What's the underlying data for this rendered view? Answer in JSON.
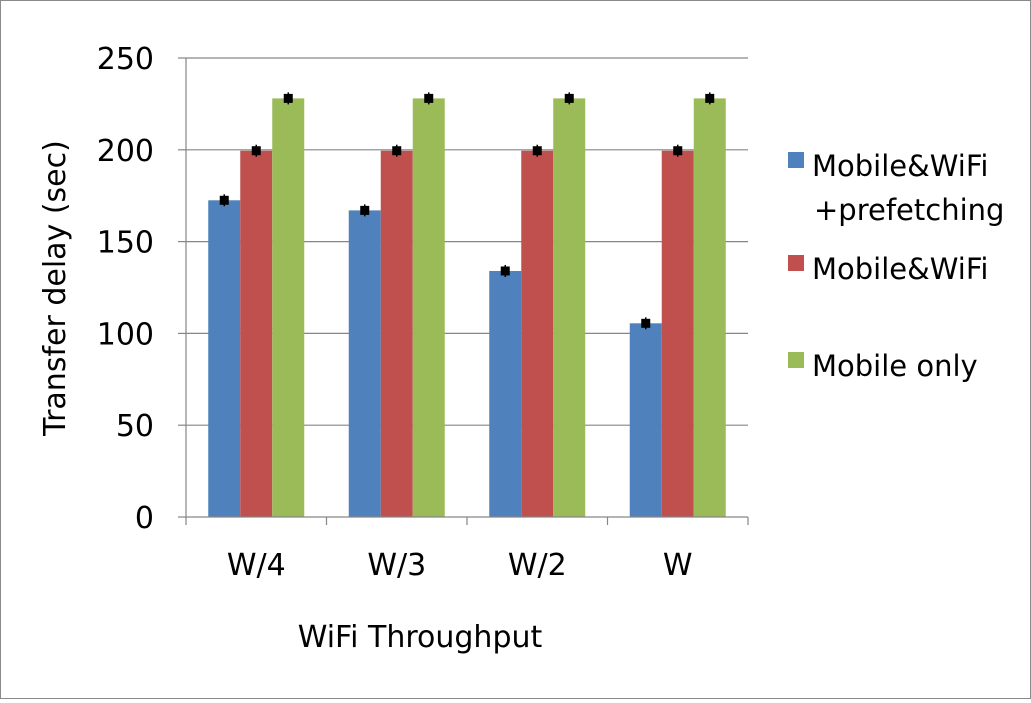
{
  "chart_data": {
    "type": "bar",
    "title": "",
    "xlabel": "WiFi Throughput",
    "ylabel": "Transfer delay (sec)",
    "categories": [
      "W/4",
      "W/3",
      "W/2",
      "W"
    ],
    "ylim": [
      0,
      250
    ],
    "yticks": [
      0,
      50,
      100,
      150,
      200,
      250
    ],
    "grid": true,
    "legend_position": "right",
    "error_bars": true,
    "series": [
      {
        "name": "Mobile&WiFi +prefetching",
        "legend_lines": [
          "Mobile&WiFi",
          "+prefetching"
        ],
        "color": "#4f81bd",
        "values": [
          172.5,
          167,
          134,
          105.5
        ]
      },
      {
        "name": "Mobile&WiFi",
        "legend_lines": [
          "Mobile&WiFi"
        ],
        "color": "#c0504d",
        "values": [
          199.5,
          199.5,
          199.5,
          199.5
        ]
      },
      {
        "name": "Mobile only",
        "legend_lines": [
          "Mobile only"
        ],
        "color": "#9bbb59",
        "values": [
          228,
          228,
          228,
          228
        ]
      }
    ]
  }
}
